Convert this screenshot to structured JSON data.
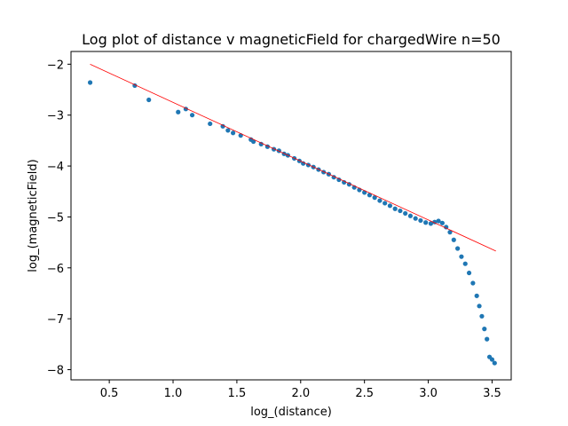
{
  "chart_data": {
    "type": "scatter",
    "title": "Log plot of distance v magneticField for chargedWire n=50",
    "xlabel": "log_(distance)",
    "ylabel": "log_(magneticField)",
    "xlim": [
      0.2,
      3.65
    ],
    "ylim": [
      -8.2,
      -1.75
    ],
    "xticks": [
      0.5,
      1.0,
      1.5,
      2.0,
      2.5,
      3.0,
      3.5
    ],
    "yticks": [
      -8,
      -7,
      -6,
      -5,
      -4,
      -3,
      -2
    ],
    "xtick_labels": [
      "0.5",
      "1.0",
      "1.5",
      "2.0",
      "2.5",
      "3.0",
      "3.5"
    ],
    "ytick_labels": [
      "−8",
      "−7",
      "−6",
      "−5",
      "−4",
      "−3",
      "−2"
    ],
    "grid": false,
    "series": [
      {
        "kind": "scatter",
        "color": "#1f77b4",
        "x": [
          0.35,
          0.7,
          0.81,
          1.04,
          1.1,
          1.15,
          1.29,
          1.39,
          1.43,
          1.47,
          1.53,
          1.61,
          1.63,
          1.69,
          1.74,
          1.79,
          1.83,
          1.87,
          1.9,
          1.95,
          1.99,
          2.02,
          2.06,
          2.1,
          2.14,
          2.18,
          2.22,
          2.26,
          2.3,
          2.34,
          2.38,
          2.42,
          2.46,
          2.5,
          2.54,
          2.58,
          2.62,
          2.66,
          2.7,
          2.74,
          2.78,
          2.82,
          2.86,
          2.9,
          2.94,
          2.98,
          3.02,
          3.05,
          3.08,
          3.11,
          3.14,
          3.17,
          3.2,
          3.23,
          3.26,
          3.29,
          3.32,
          3.35,
          3.38,
          3.4,
          3.42,
          3.44,
          3.46,
          3.48,
          3.5,
          3.52
        ],
        "y": [
          -2.36,
          -2.42,
          -2.7,
          -2.94,
          -2.88,
          -3.0,
          -3.17,
          -3.22,
          -3.3,
          -3.35,
          -3.4,
          -3.48,
          -3.52,
          -3.57,
          -3.62,
          -3.67,
          -3.7,
          -3.76,
          -3.79,
          -3.85,
          -3.9,
          -3.95,
          -3.98,
          -4.02,
          -4.07,
          -4.12,
          -4.16,
          -4.22,
          -4.27,
          -4.32,
          -4.36,
          -4.42,
          -4.47,
          -4.52,
          -4.57,
          -4.62,
          -4.68,
          -4.73,
          -4.78,
          -4.84,
          -4.88,
          -4.93,
          -4.98,
          -5.03,
          -5.07,
          -5.11,
          -5.13,
          -5.1,
          -5.08,
          -5.12,
          -5.2,
          -5.3,
          -5.45,
          -5.62,
          -5.78,
          -5.92,
          -6.1,
          -6.3,
          -6.55,
          -6.75,
          -6.95,
          -7.2,
          -7.4,
          -7.75,
          -7.8,
          -7.87
        ]
      },
      {
        "kind": "line",
        "color": "#ff0000",
        "x": [
          0.35,
          3.53
        ],
        "y": [
          -2.0,
          -5.67
        ]
      }
    ]
  }
}
